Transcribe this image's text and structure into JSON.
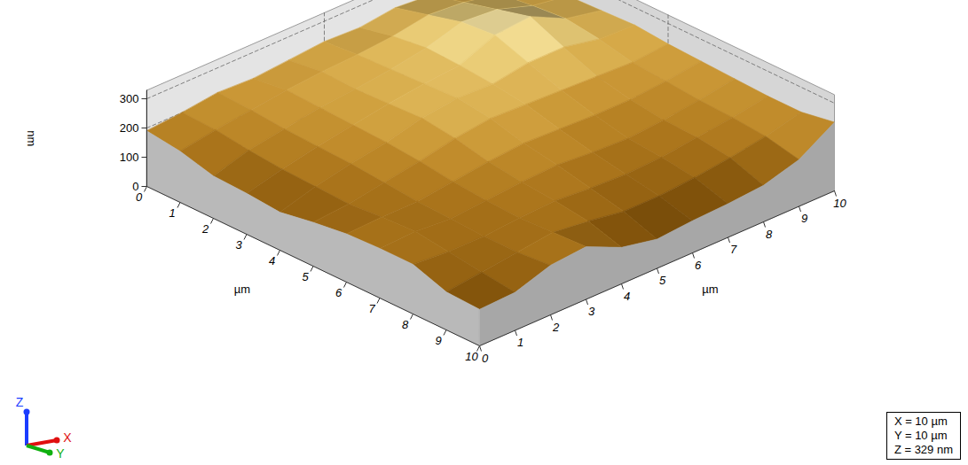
{
  "chart_data": {
    "type": "surface3d",
    "x": [
      0,
      1,
      2,
      3,
      4,
      5,
      6,
      7,
      8,
      9,
      10
    ],
    "y": [
      0,
      1,
      2,
      3,
      4,
      5,
      6,
      7,
      8,
      9,
      10
    ],
    "heights": [
      [
        190,
        200,
        215,
        210,
        220,
        230,
        225,
        240,
        230,
        220,
        215
      ],
      [
        175,
        195,
        210,
        225,
        235,
        240,
        250,
        270,
        260,
        235,
        225
      ],
      [
        145,
        180,
        200,
        220,
        230,
        245,
        265,
        300,
        290,
        250,
        230
      ],
      [
        140,
        170,
        195,
        215,
        235,
        250,
        260,
        310,
        320,
        260,
        235
      ],
      [
        130,
        165,
        190,
        210,
        240,
        255,
        250,
        270,
        270,
        245,
        240
      ],
      [
        150,
        160,
        180,
        200,
        225,
        240,
        235,
        230,
        225,
        220,
        230
      ],
      [
        165,
        170,
        170,
        185,
        200,
        210,
        205,
        200,
        200,
        210,
        225
      ],
      [
        170,
        175,
        165,
        175,
        185,
        190,
        180,
        175,
        185,
        200,
        220
      ],
      [
        170,
        160,
        160,
        170,
        175,
        165,
        160,
        165,
        180,
        195,
        215
      ],
      [
        130,
        145,
        160,
        175,
        160,
        140,
        140,
        150,
        165,
        185,
        215
      ],
      [
        125,
        130,
        170,
        180,
        125,
        100,
        110,
        115,
        125,
        160,
        235
      ]
    ],
    "xlim": [
      0,
      10
    ],
    "ylim": [
      0,
      10
    ],
    "zlim": [
      0,
      329
    ],
    "xticks": [
      0,
      1,
      2,
      3,
      4,
      5,
      6,
      7,
      8,
      9,
      10
    ],
    "yticks": [
      0,
      1,
      2,
      3,
      4,
      5,
      6,
      7,
      8,
      9,
      10
    ],
    "zticks": [
      0,
      100,
      200,
      300
    ],
    "xlabel": "µm",
    "ylabel": "µm",
    "zlabel": "nm",
    "grid": true,
    "scale_box": [
      "X = 10 µm",
      "Y = 10 µm",
      "Z = 329 nm"
    ],
    "orientation_labels": [
      "Z",
      "X",
      "Y"
    ]
  }
}
